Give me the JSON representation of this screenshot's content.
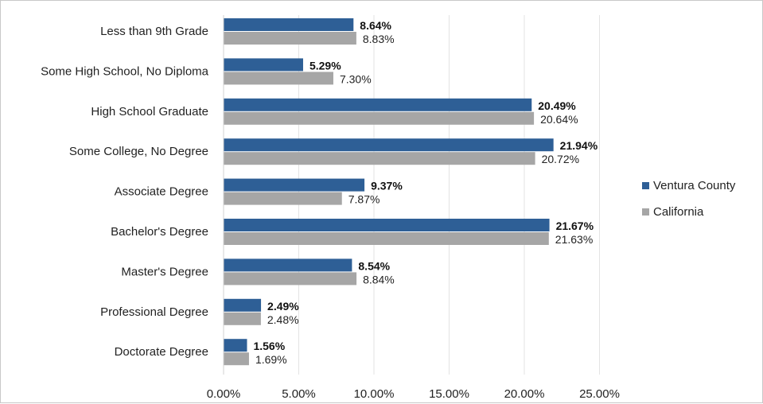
{
  "chart_data": {
    "type": "bar",
    "orientation": "horizontal",
    "categories": [
      "Less than 9th Grade",
      "Some High School, No Diploma",
      "High School Graduate",
      "Some College, No Degree",
      "Associate Degree",
      "Bachelor's Degree",
      "Master's Degree",
      "Professional Degree",
      "Doctorate Degree"
    ],
    "series": [
      {
        "name": "Ventura County",
        "color": "#2e5f96",
        "values": [
          8.64,
          5.29,
          20.49,
          21.94,
          9.37,
          21.67,
          8.54,
          2.49,
          1.56
        ],
        "labels": [
          "8.64%",
          "5.29%",
          "20.49%",
          "21.94%",
          "9.37%",
          "21.67%",
          "8.54%",
          "2.49%",
          "1.56%"
        ]
      },
      {
        "name": "California",
        "color": "#a6a6a6",
        "values": [
          8.83,
          7.3,
          20.64,
          20.72,
          7.87,
          21.63,
          8.84,
          2.48,
          1.69
        ],
        "labels": [
          "8.83%",
          "7.30%",
          "20.64%",
          "20.72%",
          "7.87%",
          "21.63%",
          "8.84%",
          "2.48%",
          "1.69%"
        ]
      }
    ],
    "xlim": [
      0,
      25
    ],
    "x_ticks": [
      0,
      5,
      10,
      15,
      20,
      25
    ],
    "x_tick_labels": [
      "0.00%",
      "5.00%",
      "10.00%",
      "15.00%",
      "20.00%",
      "25.00%"
    ],
    "grid": true,
    "legend_position": "right"
  }
}
